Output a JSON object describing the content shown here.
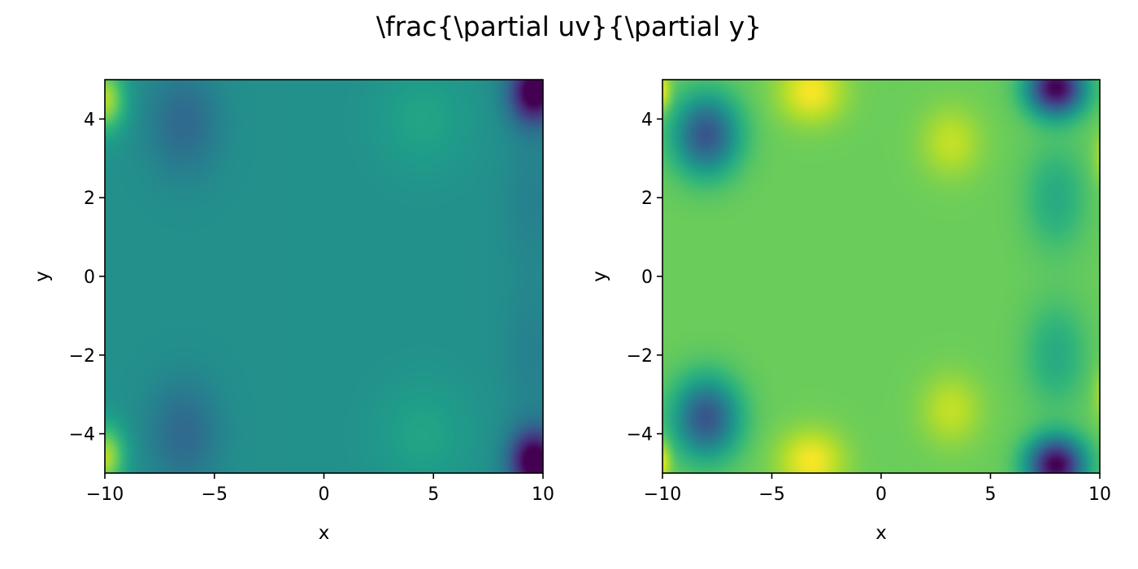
{
  "figure": {
    "suptitle": "\\frac{\\partial uv}{\\partial y}"
  },
  "colormap": {
    "name": "viridis",
    "stops": [
      "#440154",
      "#482878",
      "#3e4989",
      "#31688e",
      "#26828e",
      "#1f9e89",
      "#35b779",
      "#6ece58",
      "#b5de2b",
      "#fde725"
    ]
  },
  "chart_data": [
    {
      "type": "heatmap",
      "panel": "left",
      "title": "",
      "xlabel": "x",
      "ylabel": "y",
      "xlim": [
        -10,
        10
      ],
      "ylim": [
        -5,
        5
      ],
      "xticks": [
        -10,
        -5,
        0,
        5,
        10
      ],
      "yticks": [
        -4,
        -2,
        0,
        2,
        4
      ],
      "xtick_labels": [
        "−10",
        "−5",
        "0",
        "5",
        "10"
      ],
      "ytick_labels": [
        "−4",
        "−2",
        "0",
        "2",
        "4"
      ],
      "base_level": 0.5,
      "features": [
        {
          "x": 9.6,
          "y": 4.7,
          "sx": 1.1,
          "sy": 0.8,
          "amp": -0.58
        },
        {
          "x": 9.6,
          "y": -4.7,
          "sx": 1.1,
          "sy": 0.8,
          "amp": -0.58
        },
        {
          "x": -10.0,
          "y": 4.5,
          "sx": 0.9,
          "sy": 0.8,
          "amp": 0.38
        },
        {
          "x": -10.0,
          "y": -4.6,
          "sx": 0.9,
          "sy": 0.8,
          "amp": 0.38
        },
        {
          "x": -6.4,
          "y": 3.9,
          "sx": 1.6,
          "sy": 1.3,
          "amp": -0.16
        },
        {
          "x": -6.4,
          "y": -4.0,
          "sx": 1.6,
          "sy": 1.3,
          "amp": -0.16
        },
        {
          "x": 4.5,
          "y": 4.0,
          "sx": 2.2,
          "sy": 1.4,
          "amp": 0.08
        },
        {
          "x": 4.5,
          "y": -4.0,
          "sx": 2.2,
          "sy": 1.4,
          "amp": 0.08
        },
        {
          "x": 9.5,
          "y": 2.0,
          "sx": 1.2,
          "sy": 1.8,
          "amp": -0.06
        },
        {
          "x": 9.5,
          "y": -2.0,
          "sx": 1.2,
          "sy": 1.8,
          "amp": -0.06
        }
      ]
    },
    {
      "type": "heatmap",
      "panel": "right",
      "title": "",
      "xlabel": "x",
      "ylabel": "y",
      "xlim": [
        -10,
        10
      ],
      "ylim": [
        -5,
        5
      ],
      "xticks": [
        -10,
        -5,
        0,
        5,
        10
      ],
      "yticks": [
        -4,
        -2,
        0,
        2,
        4
      ],
      "xtick_labels": [
        "−10",
        "−5",
        "0",
        "5",
        "10"
      ],
      "ytick_labels": [
        "−4",
        "−2",
        "0",
        "2",
        "4"
      ],
      "base_level": 0.77,
      "features": [
        {
          "x": 8.0,
          "y": 4.8,
          "sx": 1.3,
          "sy": 0.7,
          "amp": -0.77
        },
        {
          "x": 8.0,
          "y": -4.8,
          "sx": 1.3,
          "sy": 0.7,
          "amp": -0.77
        },
        {
          "x": -8.0,
          "y": 3.6,
          "sx": 1.5,
          "sy": 1.0,
          "amp": -0.5
        },
        {
          "x": -8.0,
          "y": -3.6,
          "sx": 1.5,
          "sy": 1.0,
          "amp": -0.5
        },
        {
          "x": -3.2,
          "y": 4.7,
          "sx": 1.5,
          "sy": 0.8,
          "amp": 0.22
        },
        {
          "x": -3.2,
          "y": -4.7,
          "sx": 1.5,
          "sy": 0.8,
          "amp": 0.22
        },
        {
          "x": 3.2,
          "y": 3.4,
          "sx": 1.4,
          "sy": 0.9,
          "amp": 0.14
        },
        {
          "x": 3.2,
          "y": -3.4,
          "sx": 1.4,
          "sy": 0.9,
          "amp": 0.14
        },
        {
          "x": 8.0,
          "y": 2.0,
          "sx": 1.4,
          "sy": 1.3,
          "amp": -0.16
        },
        {
          "x": 8.0,
          "y": -2.0,
          "sx": 1.4,
          "sy": 1.3,
          "amp": -0.16
        },
        {
          "x": -10.0,
          "y": 4.7,
          "sx": 0.4,
          "sy": 0.5,
          "amp": 0.2
        },
        {
          "x": -10.0,
          "y": -4.7,
          "sx": 0.4,
          "sy": 0.5,
          "amp": 0.2
        },
        {
          "x": 10.2,
          "y": 3.0,
          "sx": 0.5,
          "sy": 0.7,
          "amp": 0.12
        },
        {
          "x": 10.2,
          "y": -3.0,
          "sx": 0.5,
          "sy": 0.7,
          "amp": 0.12
        }
      ]
    }
  ]
}
